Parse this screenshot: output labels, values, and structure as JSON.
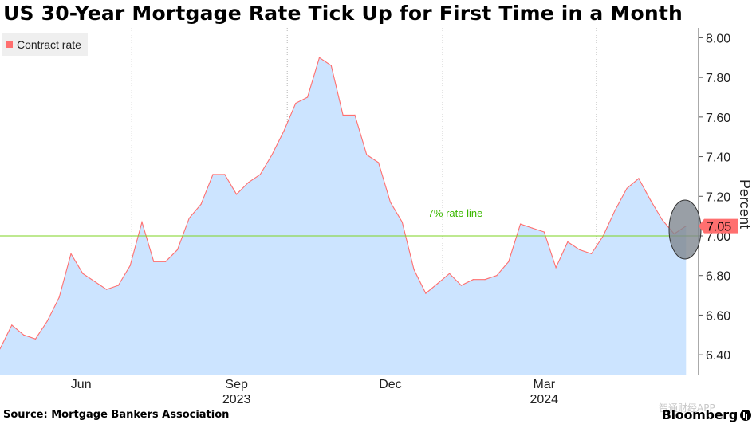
{
  "title": "US 30-Year Mortgage Rate Tick Up for First Time in a Month",
  "source": "Source: Mortgage Bankers Association",
  "brand": "Bloomberg",
  "watermark": "智通财经APP",
  "colors": {
    "area_fill": "#cce4ff",
    "line": "#ff6f6f",
    "reference_line": "#7ed321",
    "reference_label": "#3cb800",
    "last_value_badge": "#ff6f6f",
    "highlight_ellipse": "#7f8790"
  },
  "chart_data": {
    "type": "area",
    "ylabel": "Percent",
    "ylim": [
      6.3,
      8.05
    ],
    "yticks": [
      "8.00",
      "7.80",
      "7.60",
      "7.40",
      "7.20",
      "7.00",
      "6.80",
      "6.60",
      "6.40"
    ],
    "ytick_values": [
      8.0,
      7.8,
      7.6,
      7.4,
      7.2,
      7.0,
      6.8,
      6.6,
      6.4
    ],
    "x_start": "2023-04-14",
    "x_end": "2024-05-10",
    "xticks": [
      {
        "label": "Jun",
        "date": "2023-06-01"
      },
      {
        "label": "Sep",
        "date": "2023-09-01"
      },
      {
        "label": "Dec",
        "date": "2023-12-01"
      },
      {
        "label": "Mar",
        "date": "2024-03-01"
      }
    ],
    "year_labels": [
      {
        "label": "2023",
        "date": "2023-09-01"
      },
      {
        "label": "2024",
        "date": "2024-03-01"
      }
    ],
    "vgrid_dates": [
      "2023-07-01",
      "2023-10-01",
      "2024-01-01",
      "2024-04-01"
    ],
    "series": [
      {
        "name": "Contract rate",
        "points": [
          [
            "2023-04-14",
            6.43
          ],
          [
            "2023-04-21",
            6.55
          ],
          [
            "2023-04-28",
            6.5
          ],
          [
            "2023-05-05",
            6.48
          ],
          [
            "2023-05-12",
            6.57
          ],
          [
            "2023-05-19",
            6.69
          ],
          [
            "2023-05-26",
            6.91
          ],
          [
            "2023-06-02",
            6.81
          ],
          [
            "2023-06-09",
            6.77
          ],
          [
            "2023-06-16",
            6.73
          ],
          [
            "2023-06-23",
            6.75
          ],
          [
            "2023-06-30",
            6.85
          ],
          [
            "2023-07-07",
            7.07
          ],
          [
            "2023-07-14",
            6.87
          ],
          [
            "2023-07-21",
            6.87
          ],
          [
            "2023-07-28",
            6.93
          ],
          [
            "2023-08-04",
            7.09
          ],
          [
            "2023-08-11",
            7.16
          ],
          [
            "2023-08-18",
            7.31
          ],
          [
            "2023-08-25",
            7.31
          ],
          [
            "2023-09-01",
            7.21
          ],
          [
            "2023-09-08",
            7.27
          ],
          [
            "2023-09-15",
            7.31
          ],
          [
            "2023-09-22",
            7.41
          ],
          [
            "2023-09-29",
            7.53
          ],
          [
            "2023-10-06",
            7.67
          ],
          [
            "2023-10-13",
            7.7
          ],
          [
            "2023-10-20",
            7.9
          ],
          [
            "2023-10-27",
            7.86
          ],
          [
            "2023-11-03",
            7.61
          ],
          [
            "2023-11-10",
            7.61
          ],
          [
            "2023-11-17",
            7.41
          ],
          [
            "2023-11-24",
            7.37
          ],
          [
            "2023-12-01",
            7.17
          ],
          [
            "2023-12-08",
            7.07
          ],
          [
            "2023-12-15",
            6.83
          ],
          [
            "2023-12-22",
            6.71
          ],
          [
            "2023-12-29",
            6.76
          ],
          [
            "2024-01-05",
            6.81
          ],
          [
            "2024-01-12",
            6.75
          ],
          [
            "2024-01-19",
            6.78
          ],
          [
            "2024-01-26",
            6.78
          ],
          [
            "2024-02-02",
            6.8
          ],
          [
            "2024-02-09",
            6.87
          ],
          [
            "2024-02-16",
            7.06
          ],
          [
            "2024-02-23",
            7.04
          ],
          [
            "2024-03-01",
            7.02
          ],
          [
            "2024-03-08",
            6.84
          ],
          [
            "2024-03-15",
            6.97
          ],
          [
            "2024-03-22",
            6.93
          ],
          [
            "2024-03-29",
            6.91
          ],
          [
            "2024-04-05",
            7.0
          ],
          [
            "2024-04-12",
            7.13
          ],
          [
            "2024-04-19",
            7.24
          ],
          [
            "2024-04-26",
            7.29
          ],
          [
            "2024-05-03",
            7.18
          ],
          [
            "2024-05-10",
            7.08
          ],
          [
            "2024-05-17",
            7.01
          ],
          [
            "2024-05-24",
            7.05
          ]
        ]
      }
    ],
    "reference_line": {
      "value": 7.0,
      "label": "7% rate line"
    },
    "last_value_label": "7.05",
    "legend_position": "top-left",
    "grid": "vertical dotted lines"
  }
}
